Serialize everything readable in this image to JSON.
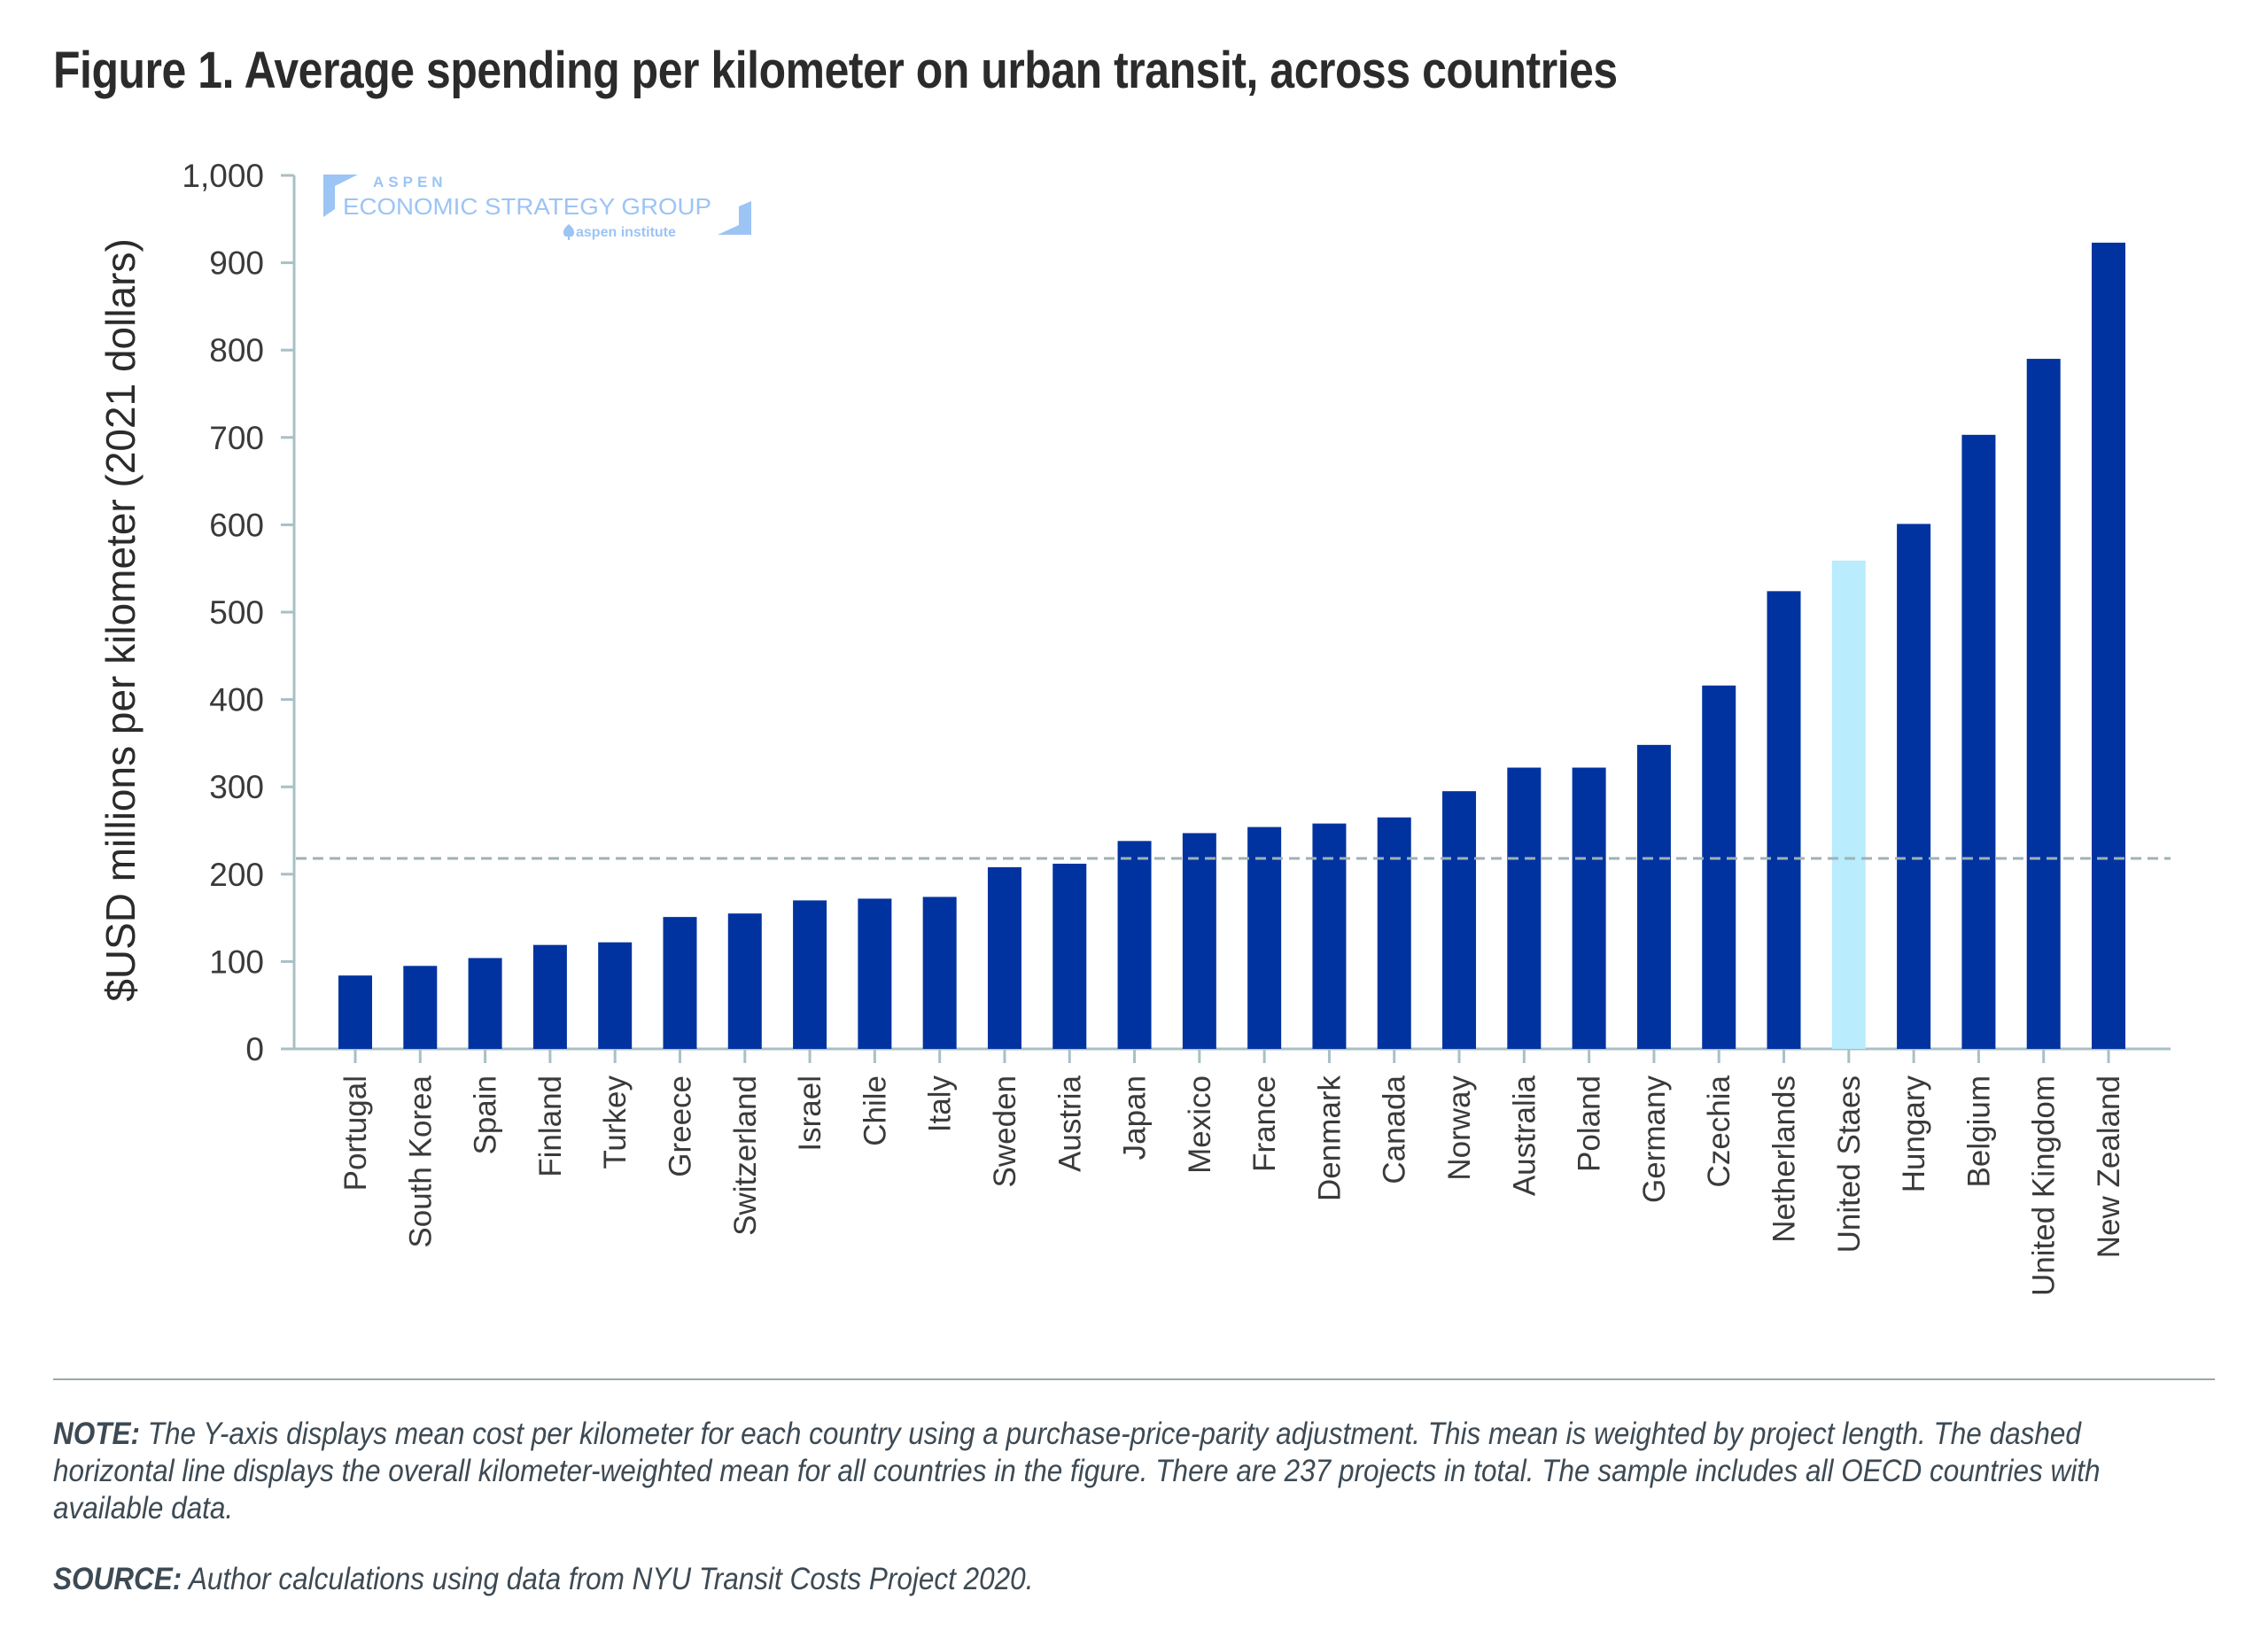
{
  "title": "Figure 1. Average spending per kilometer on urban transit, across countries",
  "logo": {
    "line1": "ASPEN",
    "line2": "ECONOMIC STRATEGY GROUP",
    "line3": "aspen institute",
    "icon": "aspen-leaf-icon",
    "color": "#9cc4f5"
  },
  "colors": {
    "bar": "#0033a0",
    "highlight_bar": "#b9ecfc",
    "axis": "#a9bfc6",
    "mean_line": "#9fb2b6",
    "text": "#3a3a3a"
  },
  "chart_data": {
    "type": "bar",
    "title": "Figure 1. Average spending per kilometer on urban transit, across countries",
    "xlabel": "",
    "ylabel": "$USD millions per kilometer (2021 dollars)",
    "ylim": [
      0,
      1000
    ],
    "yticks": [
      0,
      100,
      200,
      300,
      400,
      500,
      600,
      700,
      800,
      900,
      1000
    ],
    "ytick_labels": [
      "0",
      "100",
      "200",
      "300",
      "400",
      "500",
      "600",
      "700",
      "800",
      "900",
      "1,000"
    ],
    "grid": false,
    "legend": "none",
    "categories": [
      "Portugal",
      "South Korea",
      "Spain",
      "Finland",
      "Turkey",
      "Greece",
      "Switzerland",
      "Israel",
      "Chile",
      "Italy",
      "Sweden",
      "Austria",
      "Japan",
      "Mexico",
      "France",
      "Denmark",
      "Canada",
      "Norway",
      "Australia",
      "Poland",
      "Germany",
      "Czechia",
      "Netherlands",
      "United Staes",
      "Hungary",
      "Belgium",
      "United Kingdom",
      "New Zealand"
    ],
    "values": [
      84,
      95,
      104,
      119,
      122,
      151,
      155,
      170,
      172,
      174,
      208,
      212,
      238,
      247,
      254,
      258,
      265,
      295,
      322,
      322,
      348,
      416,
      524,
      559,
      601,
      703,
      790,
      923
    ],
    "highlighted": [
      "United Staes"
    ],
    "reference_line": {
      "label": "Kilometer-weighted mean, all countries",
      "value": 218,
      "style": "dashed"
    }
  },
  "notes": {
    "note_label": "NOTE:",
    "note_text": " The Y-axis displays mean cost per kilometer for each country using a purchase-price-parity adjustment. This mean is weighted by project length. The dashed horizontal line displays the overall kilometer-weighted mean for all countries in the figure. There are 237 projects in total. The sample includes all OECD countries with available data.",
    "source_label": "SOURCE:",
    "source_text": " Author calculations using data from NYU Transit Costs Project 2020."
  }
}
